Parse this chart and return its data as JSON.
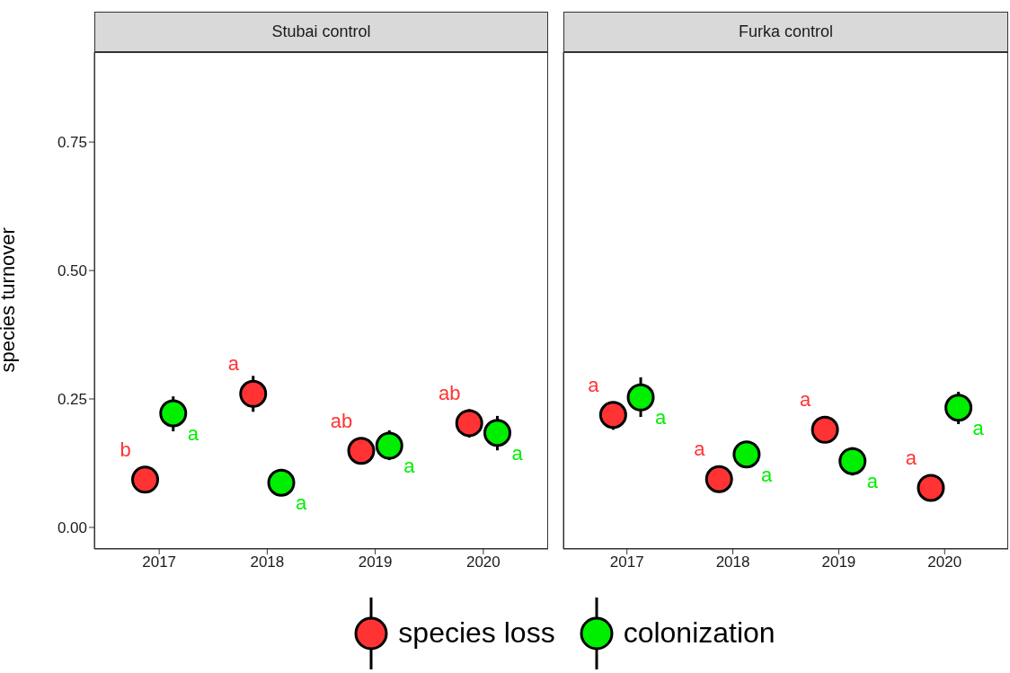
{
  "chart_data": [
    {
      "type": "scatter",
      "title": "Stubai control",
      "ylabel": "species turnover",
      "categories": [
        "2017",
        "2018",
        "2019",
        "2020"
      ],
      "ylim": [
        -0.042,
        0.925
      ],
      "yticks": [
        {
          "value": 0,
          "label": "0.00"
        },
        0.25,
        {
          "value": 0.5,
          "label": "0.50"
        },
        0.75
      ],
      "grid": false,
      "marker": "circle",
      "legend": "bottom",
      "series": [
        {
          "name": "species loss",
          "color": "#ff3333",
          "values": [
            0.093,
            0.26,
            0.149,
            0.203
          ],
          "errors": [
            null,
            [
              0.225,
              0.295
            ],
            null,
            [
              0.175,
              0.23
            ]
          ]
        },
        {
          "name": "colonization",
          "color": "#00ee00",
          "values": [
            0.222,
            0.087,
            0.159,
            0.184
          ],
          "errors": [
            [
              0.187,
              0.255
            ],
            null,
            [
              0.131,
              0.189
            ],
            [
              0.15,
              0.217
            ]
          ]
        }
      ],
      "annotations": [
        "b",
        "a",
        "ab",
        "ab",
        "a",
        "a",
        "a",
        "a"
      ]
    },
    {
      "type": "scatter",
      "title": "Furka control",
      "categories": [
        "2017",
        "2018",
        "2019",
        "2020"
      ],
      "ylim": [
        -0.042,
        0.925
      ],
      "tick_labels": "x",
      "grid": false,
      "marker": "circle",
      "series": [
        {
          "color": "#ff3333",
          "values": [
            0.219,
            0.094,
            0.19,
            0.077
          ],
          "errors": [
            [
              0.19,
              0.245
            ],
            [
              0.068,
              0.12
            ],
            null,
            [
              0.051,
              0.103
            ]
          ]
        },
        {
          "color": "#00ee00",
          "values": [
            0.253,
            0.142,
            0.129,
            0.233
          ],
          "errors": [
            [
              0.215,
              0.292
            ],
            null,
            [
              0.101,
              0.156
            ],
            [
              0.201,
              0.264
            ]
          ]
        }
      ],
      "annotations": [
        "a",
        "a",
        "a",
        "a",
        "a",
        "a",
        "a",
        "a"
      ]
    }
  ]
}
